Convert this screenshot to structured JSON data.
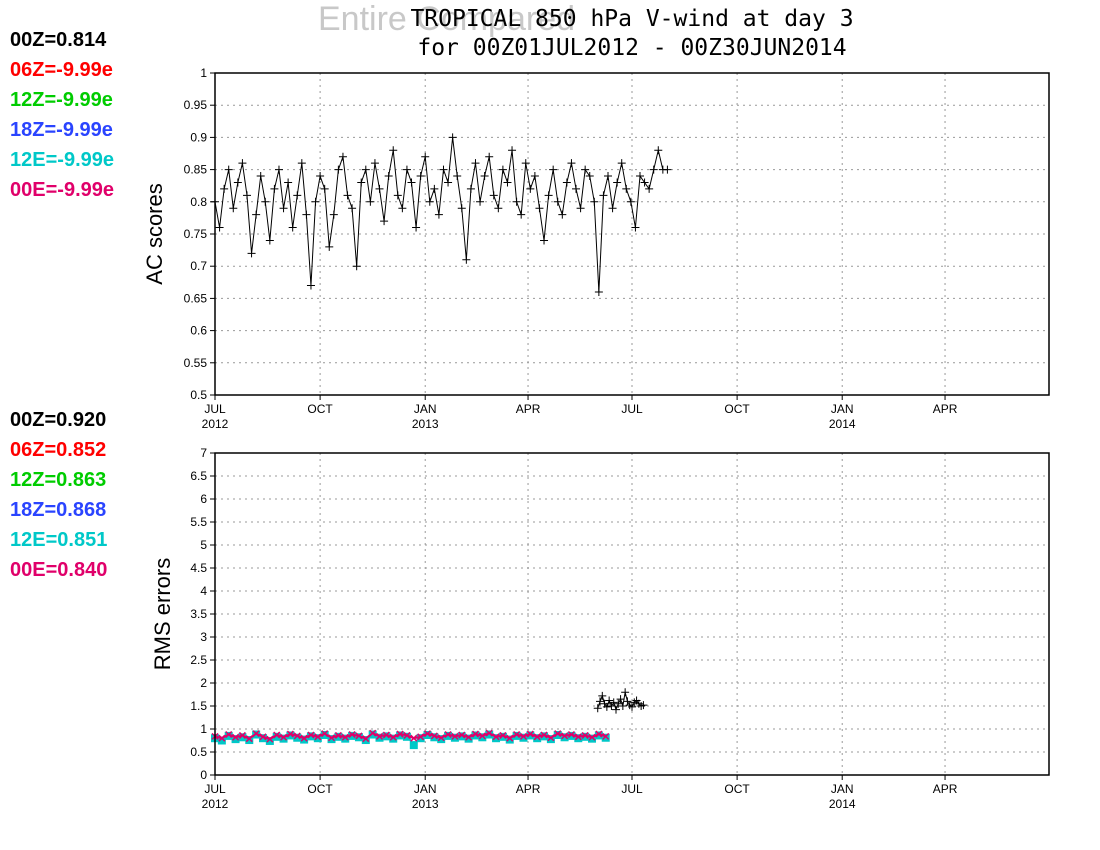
{
  "header": {
    "ghost_title": "Entire Compared",
    "title_line1": "TROPICAL 850 hPa V-wind at day 3",
    "title_line2": "for 00Z01JUL2012 - 00Z30JUN2014"
  },
  "colors": {
    "00Z": "#000000",
    "06Z": "#ff0000",
    "12Z": "#00cc00",
    "18Z": "#2a44ff",
    "12E": "#00c8c8",
    "00E": "#e0006a"
  },
  "chart_data": [
    {
      "type": "line",
      "panel": "top",
      "ylabel": "AC scores",
      "ylim": [
        0.5,
        1
      ],
      "yticks": [
        "0.5",
        "0.55",
        "0.6",
        "0.65",
        "0.7",
        "0.75",
        "0.8",
        "0.85",
        "0.9",
        "0.95",
        "1"
      ],
      "xlim": [
        "2012-07-01",
        "2014-06-30"
      ],
      "xticks": [
        {
          "label": "JUL",
          "year": "2012"
        },
        {
          "label": "OCT",
          "year": ""
        },
        {
          "label": "JAN",
          "year": "2013"
        },
        {
          "label": "APR",
          "year": ""
        },
        {
          "label": "JUL",
          "year": ""
        },
        {
          "label": "OCT",
          "year": ""
        },
        {
          "label": "JAN",
          "year": "2014"
        },
        {
          "label": "APR",
          "year": ""
        }
      ],
      "grid": true,
      "legend": [
        {
          "name": "00Z",
          "value": "0.814"
        },
        {
          "name": "06Z",
          "value": "-9.99e"
        },
        {
          "name": "12Z",
          "value": "-9.99e"
        },
        {
          "name": "18Z",
          "value": "-9.99e"
        },
        {
          "name": "12E",
          "value": "-9.99e"
        },
        {
          "name": "00E",
          "value": "-9.99e"
        }
      ],
      "series": [
        {
          "name": "00Z",
          "x_start": "2012-07-01",
          "step_days": 4,
          "values": [
            0.8,
            0.76,
            0.82,
            0.85,
            0.79,
            0.83,
            0.86,
            0.81,
            0.72,
            0.78,
            0.84,
            0.8,
            0.74,
            0.82,
            0.85,
            0.79,
            0.83,
            0.76,
            0.81,
            0.86,
            0.78,
            0.67,
            0.8,
            0.84,
            0.82,
            0.73,
            0.78,
            0.85,
            0.87,
            0.81,
            0.79,
            0.7,
            0.83,
            0.85,
            0.8,
            0.86,
            0.82,
            0.77,
            0.84,
            0.88,
            0.81,
            0.79,
            0.85,
            0.83,
            0.76,
            0.84,
            0.87,
            0.8,
            0.82,
            0.78,
            0.85,
            0.83,
            0.9,
            0.84,
            0.79,
            0.71,
            0.82,
            0.86,
            0.8,
            0.84,
            0.87,
            0.81,
            0.79,
            0.85,
            0.83,
            0.88,
            0.8,
            0.78,
            0.86,
            0.82,
            0.84,
            0.79,
            0.74,
            0.81,
            0.85,
            0.8,
            0.78,
            0.83,
            0.86,
            0.82,
            0.79,
            0.85,
            0.84,
            0.8,
            0.66,
            0.81,
            0.84,
            0.79,
            0.83,
            0.86,
            0.82,
            0.8,
            0.76,
            0.84,
            0.83,
            0.82,
            0.85,
            0.88,
            0.85,
            0.85
          ]
        }
      ]
    },
    {
      "type": "line",
      "panel": "bottom",
      "ylabel": "RMS errors",
      "ylim": [
        0,
        7
      ],
      "yticks": [
        "0",
        "0.5",
        "1",
        "1.5",
        "2",
        "2.5",
        "3",
        "3.5",
        "4",
        "4.5",
        "5",
        "5.5",
        "6",
        "6.5",
        "7"
      ],
      "xlim": [
        "2012-07-01",
        "2014-06-30"
      ],
      "xticks": [
        {
          "label": "JUL",
          "year": "2012"
        },
        {
          "label": "OCT",
          "year": ""
        },
        {
          "label": "JAN",
          "year": "2013"
        },
        {
          "label": "APR",
          "year": ""
        },
        {
          "label": "JUL",
          "year": ""
        },
        {
          "label": "OCT",
          "year": ""
        },
        {
          "label": "JAN",
          "year": "2014"
        },
        {
          "label": "APR",
          "year": ""
        }
      ],
      "grid": true,
      "legend": [
        {
          "name": "00Z",
          "value": "0.920"
        },
        {
          "name": "06Z",
          "value": "0.852"
        },
        {
          "name": "12Z",
          "value": "0.863"
        },
        {
          "name": "18Z",
          "value": "0.868"
        },
        {
          "name": "12E",
          "value": "0.851"
        },
        {
          "name": "00E",
          "value": "0.840"
        }
      ],
      "series": [
        {
          "name": "12E",
          "x_start": "2012-07-01",
          "step_days": 6,
          "values": [
            0.8,
            0.75,
            0.85,
            0.78,
            0.82,
            0.76,
            0.88,
            0.8,
            0.74,
            0.83,
            0.79,
            0.86,
            0.81,
            0.77,
            0.84,
            0.8,
            0.87,
            0.78,
            0.83,
            0.79,
            0.85,
            0.82,
            0.76,
            0.88,
            0.81,
            0.84,
            0.79,
            0.86,
            0.83,
            0.65,
            0.8,
            0.87,
            0.82,
            0.78,
            0.85,
            0.81,
            0.84,
            0.79,
            0.86,
            0.82,
            0.88,
            0.8,
            0.83,
            0.77,
            0.85,
            0.81,
            0.86,
            0.8,
            0.84,
            0.78,
            0.87,
            0.82,
            0.85,
            0.8,
            0.83,
            0.79,
            0.86,
            0.81
          ]
        },
        {
          "name": "00E",
          "x_start": "2012-07-01",
          "step_days": 6,
          "values": [
            0.84,
            0.8,
            0.88,
            0.82,
            0.86,
            0.79,
            0.9,
            0.83,
            0.78,
            0.87,
            0.82,
            0.89,
            0.85,
            0.8,
            0.87,
            0.83,
            0.9,
            0.81,
            0.86,
            0.82,
            0.88,
            0.85,
            0.79,
            0.91,
            0.84,
            0.87,
            0.82,
            0.89,
            0.86,
            0.8,
            0.83,
            0.9,
            0.85,
            0.81,
            0.88,
            0.84,
            0.87,
            0.82,
            0.89,
            0.85,
            0.91,
            0.83,
            0.86,
            0.8,
            0.88,
            0.84,
            0.89,
            0.83,
            0.87,
            0.81,
            0.9,
            0.85,
            0.88,
            0.83,
            0.86,
            0.82,
            0.89,
            0.84
          ]
        },
        {
          "name": "00Z",
          "x_start": "2013-06-01",
          "step_days": 2,
          "values": [
            1.45,
            1.6,
            1.72,
            1.55,
            1.48,
            1.62,
            1.5,
            1.58,
            1.42,
            1.55,
            1.65,
            1.5,
            1.8,
            1.6,
            1.52,
            1.48,
            1.58,
            1.62,
            1.55,
            1.5,
            1.52
          ]
        }
      ]
    }
  ]
}
